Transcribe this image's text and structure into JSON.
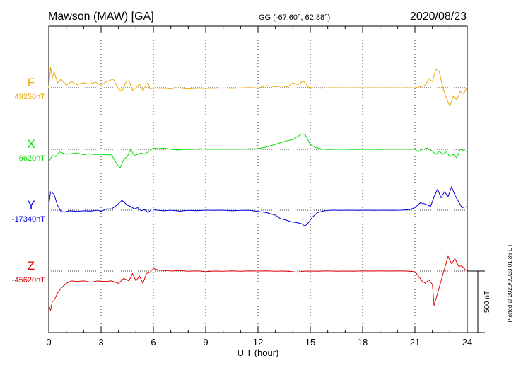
{
  "header": {
    "station": "Mawson (MAW)  [GA]",
    "coords": "GG (-67.60°,  62.88°)",
    "date": "2020/08/23"
  },
  "footer": {
    "plotted": "Plotted at 2020/09/23 01:36 UT"
  },
  "chart_data": {
    "type": "line",
    "xlabel": "U T (hour)",
    "xlim": [
      0,
      24
    ],
    "xticks": [
      "0",
      "3",
      "6",
      "9",
      "12",
      "15",
      "18",
      "21",
      "24"
    ],
    "scale_bar_label": "500 nT",
    "scale_bar_nT": 500,
    "colors": {
      "F": "#f0a800",
      "X": "#00e000",
      "Y": "#0000dd",
      "Z": "#e00000"
    },
    "series": [
      {
        "name": "F",
        "baseline_label": "49250nT",
        "baseline": 49250,
        "x": [
          0,
          0.1,
          0.2,
          0.3,
          0.5,
          0.7,
          1,
          1.3,
          1.6,
          2,
          2.3,
          2.7,
          3,
          3.3,
          3.7,
          4,
          4.2,
          4.4,
          4.6,
          4.8,
          5,
          5.2,
          5.4,
          5.6,
          5.7,
          5.8,
          6,
          6.3,
          6.7,
          7,
          7.3,
          7.6,
          8,
          8.5,
          9,
          9.5,
          10,
          10.5,
          11,
          11.5,
          12,
          12.5,
          13,
          13.3,
          13.7,
          14,
          14.3,
          14.6,
          14.9,
          15.2,
          15.6,
          16,
          16.5,
          17,
          17.5,
          18,
          18.5,
          19,
          19.5,
          20,
          20.5,
          21,
          21.3,
          21.6,
          21.8,
          22,
          22.2,
          22.4,
          22.6,
          22.8,
          23,
          23.2,
          23.4,
          23.6,
          23.8,
          24
        ],
        "y": [
          49250,
          49420,
          49330,
          49380,
          49290,
          49320,
          49270,
          49300,
          49275,
          49290,
          49280,
          49295,
          49270,
          49300,
          49320,
          49240,
          49220,
          49290,
          49310,
          49230,
          49250,
          49280,
          49225,
          49280,
          49290,
          49240,
          49250,
          49245,
          49245,
          49240,
          49250,
          49246,
          49240,
          49246,
          49245,
          49245,
          49248,
          49244,
          49248,
          49252,
          49248,
          49268,
          49258,
          49265,
          49258,
          49290,
          49275,
          49305,
          49255,
          49248,
          49246,
          49250,
          49248,
          49250,
          49248,
          49250,
          49248,
          49250,
          49248,
          49250,
          49248,
          49250,
          49258,
          49270,
          49325,
          49300,
          49400,
          49380,
          49250,
          49170,
          49100,
          49180,
          49150,
          49220,
          49200,
          49260
        ]
      },
      {
        "name": "X",
        "baseline_label": "6620nT",
        "baseline": 6620,
        "x": [
          0,
          0.2,
          0.4,
          0.6,
          1,
          1.3,
          1.6,
          2,
          2.3,
          2.6,
          3,
          3.3,
          3.6,
          3.9,
          4.1,
          4.3,
          4.5,
          4.7,
          4.9,
          5.1,
          5.3,
          5.5,
          5.7,
          5.9,
          6,
          6.3,
          6.6,
          7,
          7.4,
          7.8,
          8.2,
          8.7,
          9,
          9.5,
          10,
          10.5,
          11,
          11.5,
          12,
          12.5,
          13,
          13.3,
          13.7,
          14,
          14.3,
          14.5,
          14.7,
          15,
          15.3,
          15.7,
          16,
          16.5,
          17,
          17.5,
          18,
          18.5,
          19,
          19.5,
          20,
          20.5,
          21,
          21.2,
          21.4,
          21.7,
          22,
          22.2,
          22.4,
          22.6,
          22.8,
          23,
          23.2,
          23.4,
          23.6,
          23.8,
          24
        ],
        "y": [
          6520,
          6570,
          6560,
          6600,
          6580,
          6585,
          6590,
          6575,
          6585,
          6578,
          6580,
          6575,
          6575,
          6500,
          6470,
          6540,
          6560,
          6620,
          6570,
          6580,
          6590,
          6580,
          6600,
          6620,
          6630,
          6625,
          6630,
          6620,
          6615,
          6620,
          6618,
          6625,
          6620,
          6620,
          6620,
          6622,
          6620,
          6625,
          6625,
          6640,
          6660,
          6675,
          6690,
          6700,
          6725,
          6745,
          6740,
          6660,
          6635,
          6622,
          6618,
          6620,
          6620,
          6618,
          6620,
          6620,
          6618,
          6622,
          6620,
          6622,
          6620,
          6600,
          6620,
          6630,
          6605,
          6580,
          6605,
          6580,
          6600,
          6560,
          6580,
          6550,
          6620,
          6610,
          6600
        ]
      },
      {
        "name": "Y",
        "baseline_label": "-17340nT",
        "baseline": -17340,
        "x": [
          0,
          0.1,
          0.3,
          0.5,
          0.7,
          0.9,
          1.2,
          1.6,
          2,
          2.4,
          2.8,
          3,
          3.3,
          3.6,
          3.9,
          4.2,
          4.5,
          4.7,
          4.9,
          5.1,
          5.3,
          5.5,
          5.7,
          5.9,
          6.2,
          6.6,
          7,
          7.5,
          8,
          8.5,
          9,
          9.5,
          10,
          10.5,
          11,
          11.5,
          12,
          12.5,
          13,
          13.3,
          13.6,
          13.9,
          14.2,
          14.5,
          14.7,
          14.9,
          15.1,
          15.4,
          15.8,
          16.2,
          16.7,
          17.2,
          17.7,
          18.2,
          18.7,
          19.2,
          19.7,
          20.2,
          20.7,
          21,
          21.3,
          21.6,
          21.9,
          22.1,
          22.3,
          22.5,
          22.7,
          22.9,
          23.1,
          23.3,
          23.5,
          23.7,
          24
        ],
        "y": [
          -17300,
          -17190,
          -17210,
          -17300,
          -17350,
          -17355,
          -17345,
          -17350,
          -17345,
          -17348,
          -17340,
          -17350,
          -17330,
          -17330,
          -17300,
          -17260,
          -17300,
          -17310,
          -17330,
          -17320,
          -17345,
          -17335,
          -17360,
          -17330,
          -17340,
          -17345,
          -17340,
          -17348,
          -17342,
          -17344,
          -17340,
          -17342,
          -17340,
          -17345,
          -17342,
          -17342,
          -17350,
          -17360,
          -17380,
          -17410,
          -17420,
          -17435,
          -17440,
          -17450,
          -17470,
          -17440,
          -17400,
          -17360,
          -17345,
          -17340,
          -17342,
          -17340,
          -17342,
          -17340,
          -17342,
          -17340,
          -17342,
          -17340,
          -17335,
          -17320,
          -17280,
          -17290,
          -17310,
          -17230,
          -17170,
          -17240,
          -17190,
          -17230,
          -17150,
          -17220,
          -17270,
          -17320,
          -17310
        ]
      },
      {
        "name": "Z",
        "baseline_label": "-45620nT",
        "baseline": -45620,
        "x": [
          0,
          0.1,
          0.2,
          0.3,
          0.5,
          0.7,
          1,
          1.3,
          1.6,
          2,
          2.4,
          2.8,
          3.2,
          3.6,
          4,
          4.3,
          4.6,
          4.8,
          5,
          5.2,
          5.4,
          5.6,
          5.8,
          6,
          6.3,
          6.7,
          7,
          7.5,
          8,
          8.5,
          9,
          9.5,
          10,
          10.5,
          11,
          11.5,
          12,
          12.5,
          13,
          13.5,
          14,
          14.3,
          14.6,
          15,
          15.5,
          16,
          16.5,
          17,
          17.5,
          18,
          18.5,
          19,
          19.5,
          20,
          20.5,
          21,
          21.2,
          21.4,
          21.6,
          21.8,
          22,
          22.1,
          22.3,
          22.5,
          22.7,
          22.9,
          23.1,
          23.3,
          23.5,
          23.7,
          23.9,
          24
        ],
        "y": [
          -45900,
          -45940,
          -45870,
          -45860,
          -45800,
          -45760,
          -45720,
          -45700,
          -45705,
          -45700,
          -45710,
          -45700,
          -45705,
          -45700,
          -45720,
          -45680,
          -45700,
          -45640,
          -45700,
          -45660,
          -45720,
          -45640,
          -45630,
          -45600,
          -45612,
          -45615,
          -45620,
          -45616,
          -45622,
          -45618,
          -45624,
          -45620,
          -45622,
          -45618,
          -45622,
          -45618,
          -45620,
          -45618,
          -45622,
          -45620,
          -45625,
          -45630,
          -45622,
          -45620,
          -45622,
          -45618,
          -45622,
          -45620,
          -45622,
          -45618,
          -45620,
          -45618,
          -45620,
          -45618,
          -45620,
          -45625,
          -45660,
          -45700,
          -45720,
          -45690,
          -45730,
          -45900,
          -45800,
          -45700,
          -45600,
          -45500,
          -45560,
          -45520,
          -45580,
          -45580,
          -45610,
          -45620
        ]
      }
    ]
  }
}
